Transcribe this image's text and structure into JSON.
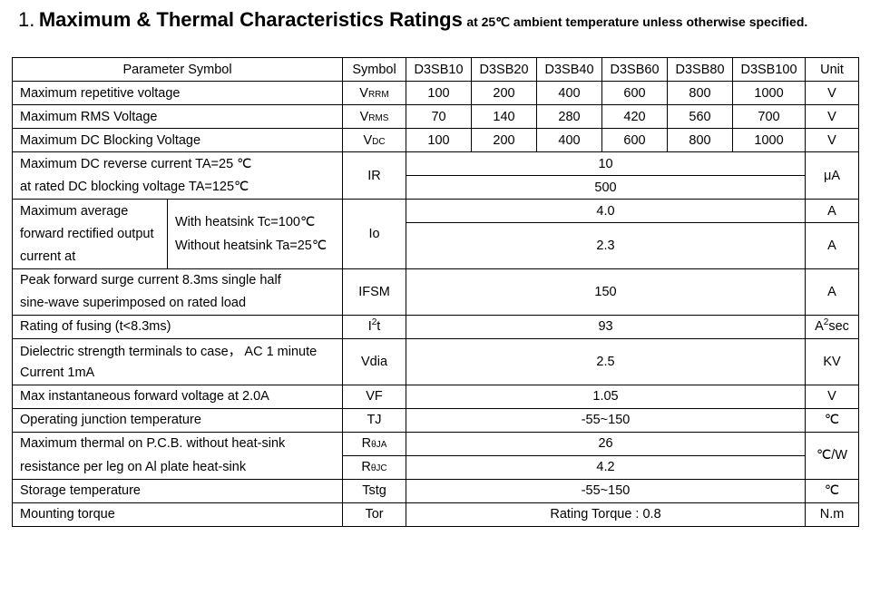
{
  "title": {
    "number": "1.",
    "main": "Maximum & Thermal Characteristics Ratings",
    "sub": "at 25℃ ambient temperature unless otherwise specified."
  },
  "table": {
    "headers": {
      "parameter": "Parameter Symbol",
      "symbol": "Symbol",
      "models": [
        "D3SB10",
        "D3SB20",
        "D3SB40",
        "D3SB60",
        "D3SB80",
        "D3SB100"
      ],
      "unit": "Unit"
    },
    "rows": {
      "vrrm": {
        "param": "Maximum repetitive voltage",
        "sym_main": "V",
        "sym_sub": "RRM",
        "values": [
          "100",
          "200",
          "400",
          "600",
          "800",
          "1000"
        ],
        "unit": "V"
      },
      "vrms": {
        "param": "Maximum RMS Voltage",
        "sym_main": "V",
        "sym_sub": "RMS",
        "values": [
          "70",
          "140",
          "280",
          "420",
          "560",
          "700"
        ],
        "unit": "V"
      },
      "vdc": {
        "param": "Maximum DC Blocking Voltage",
        "sym_main": "V",
        "sym_sub": "DC",
        "values": [
          "100",
          "200",
          "400",
          "600",
          "800",
          "1000"
        ],
        "unit": "V"
      },
      "ir": {
        "param_line1": "Maximum DC reverse current TA=25 ℃",
        "param_line2": "at rated DC blocking voltage TA=125℃",
        "symbol": "IR",
        "value1": "10",
        "value2": "500",
        "unit": "μA"
      },
      "io": {
        "param_line1": "Maximum average",
        "param_line2": "forward rectified output",
        "param_line3": "current at",
        "cond1": "With heatsink Tc=100℃",
        "cond2": "Without heatsink Ta=25℃",
        "symbol": "Io",
        "value1": "4.0",
        "value2": "2.3",
        "unit1": "A",
        "unit2": "A"
      },
      "ifsm": {
        "param_line1": "Peak forward surge current 8.3ms single half",
        "param_line2": "sine-wave superimposed on rated load",
        "symbol": "IFSM",
        "value": "150",
        "unit": "A"
      },
      "i2t": {
        "param": "Rating of fusing (t<8.3ms)",
        "sym_main": "I",
        "sym_sup": "2",
        "sym_tail": "t",
        "value": "93",
        "unit_main": "A",
        "unit_sup": "2",
        "unit_tail": "sec"
      },
      "vdia": {
        "param_line1": "Dielectric strength terminals to case，  AC 1 minute",
        "param_line2": "Current 1mA",
        "symbol": "Vdia",
        "value": "2.5",
        "unit": "KV"
      },
      "vf": {
        "param": "Max instantaneous forward voltage at 2.0A",
        "symbol": "VF",
        "value": "1.05",
        "unit": "V"
      },
      "tj": {
        "param": "Operating junction temperature",
        "symbol": "TJ",
        "value": "-55~150",
        "unit": "℃"
      },
      "rth": {
        "param_line1": "Maximum thermal on P.C.B. without heat-sink",
        "param_line2": "resistance per leg on Al plate heat-sink",
        "sym1_main": "R",
        "sym1_sub": "θJA",
        "sym2_main": "R",
        "sym2_sub": "θJC",
        "value1": "26",
        "value2": "4.2",
        "unit": "℃/W"
      },
      "tstg": {
        "param": "Storage temperature",
        "symbol": "Tstg",
        "value": "-55~150",
        "unit": "℃"
      },
      "tor": {
        "param": "Mounting torque",
        "symbol": "Tor",
        "value": "Rating Torque : 0.8",
        "unit": "N.m"
      }
    }
  }
}
